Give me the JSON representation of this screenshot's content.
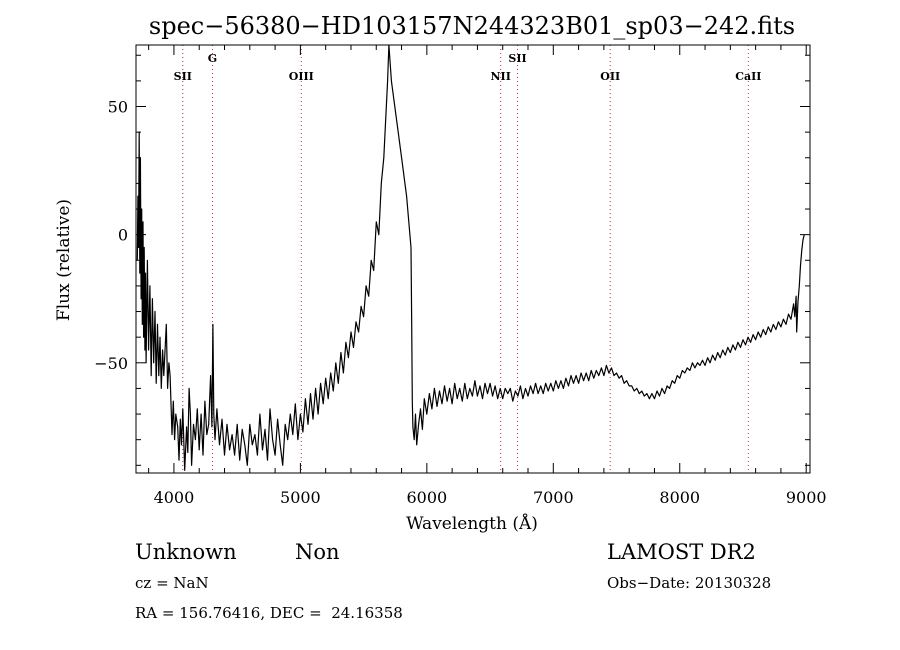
{
  "chart_data": {
    "type": "line",
    "title": "spec−56380−HD103157N244323B01_sp03−242.fits",
    "xlabel": "Wavelength (Å)",
    "ylabel": "Flux (relative)",
    "xlim": [
      3700,
      9030
    ],
    "ylim": [
      -93,
      74
    ],
    "xticks": [
      4000,
      5000,
      6000,
      7000,
      8000,
      9000
    ],
    "xtick_labels": [
      "4000",
      "5000",
      "6000",
      "7000",
      "8000",
      "9000"
    ],
    "yticks": [
      50,
      0,
      -50
    ],
    "ytick_labels": [
      "50",
      "0",
      "−50"
    ],
    "grid": false,
    "line_color": "#000000",
    "line_marker_color": "#cc3333",
    "spectral_lines": [
      {
        "label": "SII",
        "wavelength": 4070,
        "row": "low"
      },
      {
        "label": "G",
        "wavelength": 4305,
        "row": "high"
      },
      {
        "label": "OIII",
        "wavelength": 5007,
        "row": "low"
      },
      {
        "label": "NII",
        "wavelength": 6584,
        "row": "low"
      },
      {
        "label": "SII",
        "wavelength": 6717,
        "row": "high"
      },
      {
        "label": "OII",
        "wavelength": 7450,
        "row": "low"
      },
      {
        "label": "CaII",
        "wavelength": 8542,
        "row": "low"
      }
    ],
    "series": [
      {
        "points": [
          [
            3710,
            -10
          ],
          [
            3715,
            15
          ],
          [
            3720,
            -5
          ],
          [
            3725,
            40
          ],
          [
            3730,
            -15
          ],
          [
            3735,
            30
          ],
          [
            3740,
            -25
          ],
          [
            3745,
            10
          ],
          [
            3750,
            -35
          ],
          [
            3755,
            5
          ],
          [
            3760,
            -40
          ],
          [
            3765,
            -5
          ],
          [
            3770,
            -45
          ],
          [
            3775,
            -15
          ],
          [
            3780,
            -50
          ],
          [
            3790,
            -10
          ],
          [
            3800,
            -45
          ],
          [
            3810,
            -20
          ],
          [
            3820,
            -55
          ],
          [
            3830,
            -25
          ],
          [
            3840,
            -50
          ],
          [
            3850,
            -30
          ],
          [
            3860,
            -58
          ],
          [
            3870,
            -35
          ],
          [
            3880,
            -55
          ],
          [
            3890,
            -40
          ],
          [
            3900,
            -60
          ],
          [
            3910,
            -45
          ],
          [
            3920,
            -55
          ],
          [
            3940,
            -35
          ],
          [
            3950,
            -60
          ],
          [
            3960,
            -50
          ],
          [
            3970,
            -55
          ],
          [
            3985,
            -78
          ],
          [
            3995,
            -65
          ],
          [
            4005,
            -80
          ],
          [
            4015,
            -70
          ],
          [
            4030,
            -75
          ],
          [
            4040,
            -88
          ],
          [
            4050,
            -72
          ],
          [
            4060,
            -82
          ],
          [
            4070,
            -68
          ],
          [
            4085,
            -92
          ],
          [
            4100,
            -75
          ],
          [
            4110,
            -85
          ],
          [
            4120,
            -60
          ],
          [
            4130,
            -70
          ],
          [
            4140,
            -90
          ],
          [
            4155,
            -74
          ],
          [
            4170,
            -80
          ],
          [
            4185,
            -68
          ],
          [
            4200,
            -84
          ],
          [
            4215,
            -70
          ],
          [
            4230,
            -86
          ],
          [
            4245,
            -65
          ],
          [
            4260,
            -78
          ],
          [
            4275,
            -74
          ],
          [
            4290,
            -55
          ],
          [
            4300,
            -75
          ],
          [
            4308,
            -35
          ],
          [
            4315,
            -70
          ],
          [
            4325,
            -80
          ],
          [
            4340,
            -68
          ],
          [
            4360,
            -82
          ],
          [
            4380,
            -72
          ],
          [
            4400,
            -86
          ],
          [
            4420,
            -74
          ],
          [
            4440,
            -84
          ],
          [
            4460,
            -78
          ],
          [
            4480,
            -86
          ],
          [
            4500,
            -74
          ],
          [
            4520,
            -88
          ],
          [
            4540,
            -76
          ],
          [
            4560,
            -82
          ],
          [
            4580,
            -90
          ],
          [
            4600,
            -74
          ],
          [
            4620,
            -82
          ],
          [
            4640,
            -78
          ],
          [
            4660,
            -86
          ],
          [
            4680,
            -70
          ],
          [
            4700,
            -84
          ],
          [
            4720,
            -76
          ],
          [
            4740,
            -88
          ],
          [
            4760,
            -68
          ],
          [
            4780,
            -80
          ],
          [
            4800,
            -86
          ],
          [
            4820,
            -72
          ],
          [
            4840,
            -82
          ],
          [
            4860,
            -90
          ],
          [
            4880,
            -74
          ],
          [
            4900,
            -80
          ],
          [
            4920,
            -70
          ],
          [
            4940,
            -78
          ],
          [
            4960,
            -66
          ],
          [
            4980,
            -80
          ],
          [
            5000,
            -70
          ],
          [
            5020,
            -77
          ],
          [
            5040,
            -64
          ],
          [
            5060,
            -74
          ],
          [
            5080,
            -62
          ],
          [
            5100,
            -72
          ],
          [
            5120,
            -60
          ],
          [
            5140,
            -70
          ],
          [
            5160,
            -58
          ],
          [
            5180,
            -66
          ],
          [
            5200,
            -56
          ],
          [
            5220,
            -64
          ],
          [
            5240,
            -54
          ],
          [
            5260,
            -61
          ],
          [
            5280,
            -50
          ],
          [
            5300,
            -58
          ],
          [
            5320,
            -46
          ],
          [
            5340,
            -54
          ],
          [
            5360,
            -42
          ],
          [
            5380,
            -48
          ],
          [
            5400,
            -38
          ],
          [
            5420,
            -44
          ],
          [
            5440,
            -34
          ],
          [
            5460,
            -38
          ],
          [
            5480,
            -28
          ],
          [
            5500,
            -32
          ],
          [
            5520,
            -20
          ],
          [
            5540,
            -24
          ],
          [
            5560,
            -10
          ],
          [
            5580,
            -14
          ],
          [
            5600,
            5
          ],
          [
            5620,
            0
          ],
          [
            5640,
            20
          ],
          [
            5660,
            30
          ],
          [
            5675,
            45
          ],
          [
            5690,
            60
          ],
          [
            5700,
            74
          ],
          [
            5720,
            60
          ],
          [
            5760,
            45
          ],
          [
            5800,
            30
          ],
          [
            5840,
            15
          ],
          [
            5875,
            -5
          ],
          [
            5880,
            -35
          ],
          [
            5885,
            -65
          ],
          [
            5890,
            -75
          ],
          [
            5900,
            -80
          ],
          [
            5910,
            -70
          ],
          [
            5920,
            -82
          ],
          [
            5935,
            -74
          ],
          [
            5950,
            -68
          ],
          [
            5965,
            -76
          ],
          [
            5980,
            -64
          ],
          [
            6000,
            -70
          ],
          [
            6020,
            -62
          ],
          [
            6040,
            -68
          ],
          [
            6060,
            -60
          ],
          [
            6080,
            -67
          ],
          [
            6100,
            -61
          ],
          [
            6120,
            -66
          ],
          [
            6140,
            -59
          ],
          [
            6160,
            -65
          ],
          [
            6180,
            -60
          ],
          [
            6200,
            -66
          ],
          [
            6220,
            -58
          ],
          [
            6240,
            -64
          ],
          [
            6260,
            -60
          ],
          [
            6280,
            -65
          ],
          [
            6300,
            -58
          ],
          [
            6320,
            -64
          ],
          [
            6340,
            -60
          ],
          [
            6360,
            -63
          ],
          [
            6380,
            -57
          ],
          [
            6400,
            -63
          ],
          [
            6420,
            -59
          ],
          [
            6440,
            -64
          ],
          [
            6460,
            -58
          ],
          [
            6480,
            -62
          ],
          [
            6500,
            -58
          ],
          [
            6520,
            -63
          ],
          [
            6540,
            -59
          ],
          [
            6560,
            -64
          ],
          [
            6580,
            -60
          ],
          [
            6600,
            -64
          ],
          [
            6620,
            -60
          ],
          [
            6640,
            -62
          ],
          [
            6660,
            -60
          ],
          [
            6680,
            -65
          ],
          [
            6700,
            -61
          ],
          [
            6720,
            -63
          ],
          [
            6740,
            -59
          ],
          [
            6760,
            -64
          ],
          [
            6780,
            -60
          ],
          [
            6800,
            -63
          ],
          [
            6820,
            -59
          ],
          [
            6840,
            -62
          ],
          [
            6860,
            -58
          ],
          [
            6880,
            -62
          ],
          [
            6900,
            -59
          ],
          [
            6920,
            -62
          ],
          [
            6940,
            -58
          ],
          [
            6960,
            -61
          ],
          [
            6980,
            -58
          ],
          [
            7000,
            -61
          ],
          [
            7020,
            -57
          ],
          [
            7040,
            -60
          ],
          [
            7060,
            -57
          ],
          [
            7080,
            -60
          ],
          [
            7100,
            -56
          ],
          [
            7120,
            -59
          ],
          [
            7140,
            -55
          ],
          [
            7160,
            -58
          ],
          [
            7180,
            -55
          ],
          [
            7200,
            -58
          ],
          [
            7220,
            -54
          ],
          [
            7240,
            -57
          ],
          [
            7260,
            -54
          ],
          [
            7280,
            -57
          ],
          [
            7300,
            -53
          ],
          [
            7320,
            -56
          ],
          [
            7340,
            -53
          ],
          [
            7360,
            -55
          ],
          [
            7380,
            -52
          ],
          [
            7400,
            -55
          ],
          [
            7420,
            -51
          ],
          [
            7440,
            -54
          ],
          [
            7460,
            -52
          ],
          [
            7480,
            -55
          ],
          [
            7500,
            -54
          ],
          [
            7520,
            -56
          ],
          [
            7540,
            -55
          ],
          [
            7560,
            -58
          ],
          [
            7580,
            -57
          ],
          [
            7600,
            -59
          ],
          [
            7620,
            -59
          ],
          [
            7640,
            -61
          ],
          [
            7660,
            -60
          ],
          [
            7680,
            -62
          ],
          [
            7700,
            -61
          ],
          [
            7720,
            -63
          ],
          [
            7740,
            -62
          ],
          [
            7760,
            -64
          ],
          [
            7780,
            -62
          ],
          [
            7800,
            -64
          ],
          [
            7820,
            -61
          ],
          [
            7840,
            -63
          ],
          [
            7860,
            -60
          ],
          [
            7880,
            -62
          ],
          [
            7900,
            -59
          ],
          [
            7920,
            -60
          ],
          [
            7940,
            -57
          ],
          [
            7960,
            -58
          ],
          [
            7980,
            -55
          ],
          [
            8000,
            -56
          ],
          [
            8020,
            -53
          ],
          [
            8040,
            -54
          ],
          [
            8060,
            -52
          ],
          [
            8080,
            -53
          ],
          [
            8100,
            -50
          ],
          [
            8120,
            -52
          ],
          [
            8140,
            -50
          ],
          [
            8160,
            -51
          ],
          [
            8180,
            -49
          ],
          [
            8200,
            -51
          ],
          [
            8220,
            -48
          ],
          [
            8240,
            -50
          ],
          [
            8260,
            -47
          ],
          [
            8280,
            -49
          ],
          [
            8300,
            -46
          ],
          [
            8320,
            -48
          ],
          [
            8340,
            -45
          ],
          [
            8360,
            -47
          ],
          [
            8380,
            -44
          ],
          [
            8400,
            -46
          ],
          [
            8420,
            -43
          ],
          [
            8440,
            -45
          ],
          [
            8460,
            -42
          ],
          [
            8480,
            -44
          ],
          [
            8500,
            -41
          ],
          [
            8520,
            -43
          ],
          [
            8540,
            -40
          ],
          [
            8560,
            -42
          ],
          [
            8580,
            -39
          ],
          [
            8600,
            -41
          ],
          [
            8620,
            -38
          ],
          [
            8640,
            -40
          ],
          [
            8660,
            -37
          ],
          [
            8680,
            -39
          ],
          [
            8700,
            -36
          ],
          [
            8720,
            -38
          ],
          [
            8740,
            -35
          ],
          [
            8760,
            -37
          ],
          [
            8780,
            -34
          ],
          [
            8800,
            -36
          ],
          [
            8820,
            -33
          ],
          [
            8840,
            -35
          ],
          [
            8860,
            -31
          ],
          [
            8880,
            -33
          ],
          [
            8900,
            -27
          ],
          [
            8910,
            -32
          ],
          [
            8920,
            -24
          ],
          [
            8925,
            -38
          ],
          [
            8935,
            -26
          ],
          [
            8945,
            -20
          ],
          [
            8955,
            -12
          ],
          [
            8965,
            -6
          ],
          [
            8975,
            -2
          ],
          [
            8985,
            0
          ]
        ]
      }
    ]
  },
  "info": {
    "class_label": "Unknown",
    "subclass_label": "Non",
    "survey": "LAMOST DR2",
    "cz": "cz = NaN",
    "obs_date": "Obs−Date: 20130328",
    "coords": "RA = 156.76416, DEC =  24.16358"
  }
}
